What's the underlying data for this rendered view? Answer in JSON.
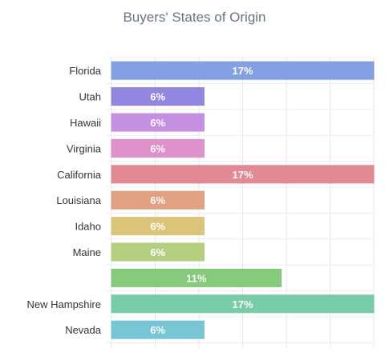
{
  "chart_data": {
    "type": "bar",
    "orientation": "horizontal",
    "title": "Buyers' States of Origin",
    "categories": [
      "Florida",
      "Utah",
      "Hawaii",
      "Virginia",
      "California",
      "Louisiana",
      "Idaho",
      "Maine",
      "",
      "New Hampshire",
      "Nevada"
    ],
    "values": [
      17,
      6,
      6,
      6,
      17,
      6,
      6,
      6,
      11,
      17,
      6
    ],
    "data_labels": [
      "17%",
      "6%",
      "6%",
      "6%",
      "17%",
      "6%",
      "6%",
      "6%",
      "11%",
      "17%",
      "6%"
    ],
    "colors": [
      "#7b9be0",
      "#8c7fe0",
      "#c28ae0",
      "#de8ac8",
      "#e0838d",
      "#e09c7a",
      "#d9c272",
      "#b0cc78",
      "#7dc873",
      "#6fcaa2",
      "#6fc3d4"
    ],
    "xlim": [
      0,
      17
    ],
    "grid": true,
    "legend": "none"
  }
}
